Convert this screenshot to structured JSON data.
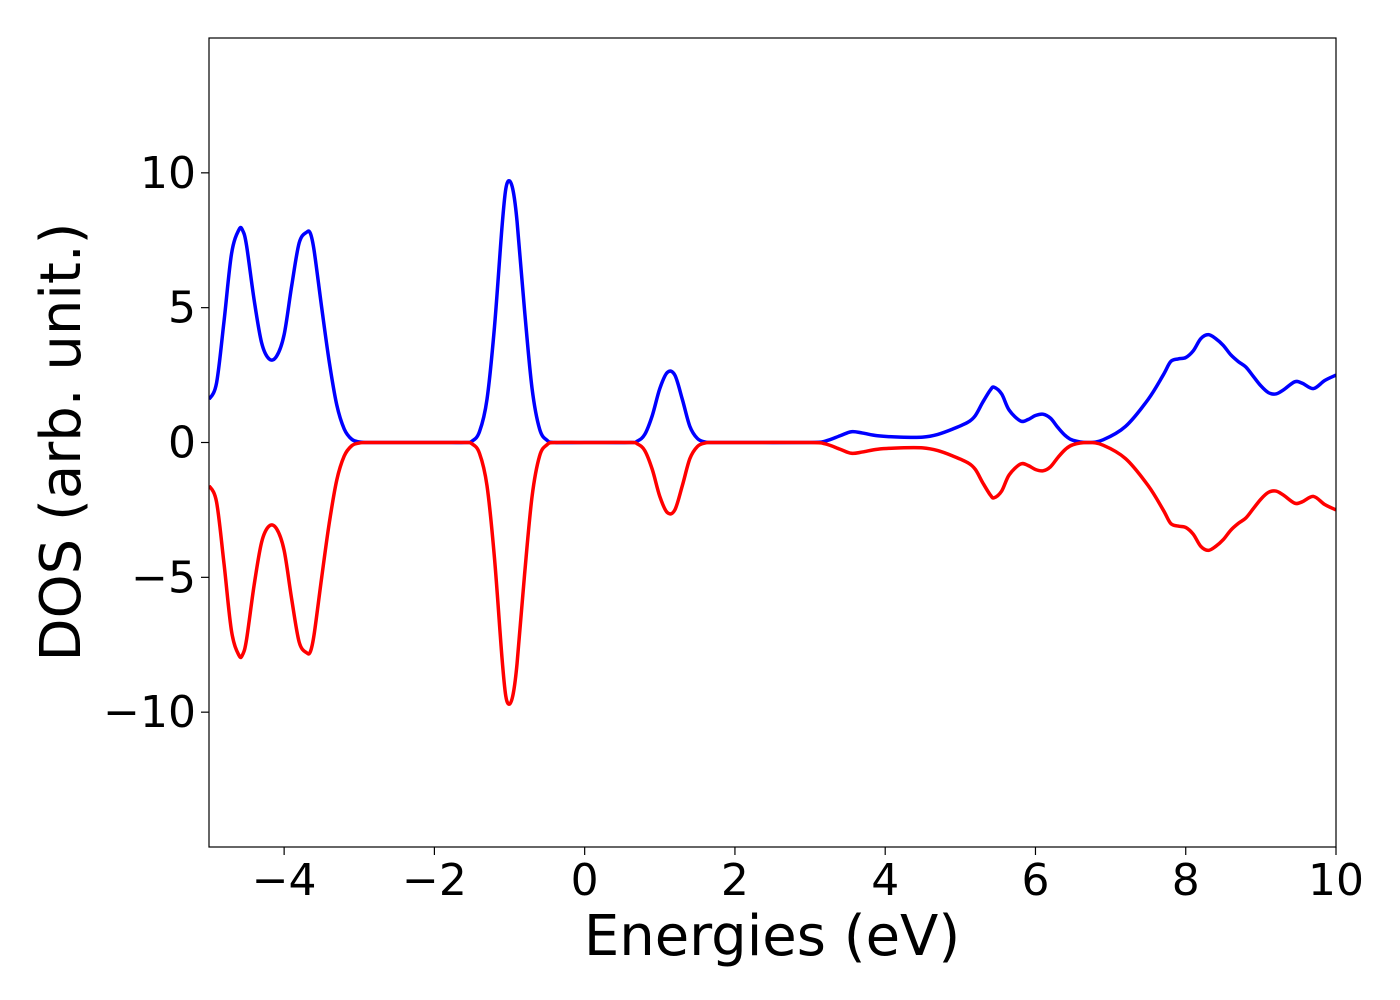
{
  "chart_data": {
    "type": "line",
    "title": "",
    "xlabel": "Energies (eV)",
    "ylabel": "DOS (arb. unit.)",
    "xlim": [
      -5,
      10
    ],
    "ylim": [
      -15,
      15
    ],
    "grid": false,
    "legend": "none",
    "x_ticks": [
      {
        "value": -4,
        "label": "−4"
      },
      {
        "value": -2,
        "label": "−2"
      },
      {
        "value": 0,
        "label": "0"
      },
      {
        "value": 2,
        "label": "2"
      },
      {
        "value": 4,
        "label": "4"
      },
      {
        "value": 6,
        "label": "6"
      },
      {
        "value": 8,
        "label": "8"
      },
      {
        "value": 10,
        "label": "10"
      }
    ],
    "y_ticks": [
      {
        "value": 10,
        "label": "10"
      },
      {
        "value": 5,
        "label": "5"
      },
      {
        "value": 0,
        "label": "0"
      },
      {
        "value": -5,
        "label": "−5"
      },
      {
        "value": -10,
        "label": "−10"
      }
    ],
    "series": [
      {
        "color": "#0000ff",
        "x": [
          -5.0,
          -4.9,
          -4.8,
          -4.7,
          -4.6,
          -4.55,
          -4.5,
          -4.4,
          -4.3,
          -4.2,
          -4.1,
          -4.0,
          -3.9,
          -3.8,
          -3.7,
          -3.65,
          -3.6,
          -3.5,
          -3.4,
          -3.3,
          -3.2,
          -3.1,
          -3.0,
          -2.9,
          -2.8,
          -2.0,
          -1.6,
          -1.5,
          -1.4,
          -1.3,
          -1.2,
          -1.1,
          -1.05,
          -1.0,
          -0.95,
          -0.9,
          -0.8,
          -0.7,
          -0.6,
          -0.5,
          -0.4,
          0.0,
          0.6,
          0.7,
          0.8,
          0.9,
          1.0,
          1.1,
          1.2,
          1.3,
          1.4,
          1.5,
          1.6,
          1.7,
          1.8,
          2.0,
          3.0,
          3.2,
          3.4,
          3.55,
          3.7,
          3.9,
          4.2,
          4.5,
          4.7,
          4.9,
          5.1,
          5.2,
          5.3,
          5.4,
          5.45,
          5.55,
          5.65,
          5.8,
          5.9,
          6.0,
          6.1,
          6.2,
          6.3,
          6.4,
          6.5,
          6.7,
          6.9,
          7.2,
          7.5,
          7.7,
          7.8,
          7.9,
          8.0,
          8.1,
          8.2,
          8.3,
          8.4,
          8.5,
          8.6,
          8.7,
          8.8,
          8.9,
          9.0,
          9.1,
          9.2,
          9.3,
          9.45,
          9.55,
          9.7,
          9.85,
          10.0
        ],
        "values": [
          1.6,
          2.2,
          4.5,
          7.0,
          7.9,
          7.85,
          7.3,
          5.3,
          3.7,
          3.1,
          3.2,
          4.0,
          5.8,
          7.4,
          7.8,
          7.75,
          7.1,
          5.0,
          3.0,
          1.4,
          0.5,
          0.12,
          0.02,
          0.0,
          0.0,
          0.0,
          0.0,
          0.05,
          0.4,
          1.6,
          4.3,
          8.0,
          9.4,
          9.7,
          9.3,
          8.2,
          4.9,
          2.0,
          0.5,
          0.08,
          0.0,
          0.0,
          0.0,
          0.05,
          0.3,
          1.0,
          2.0,
          2.6,
          2.5,
          1.6,
          0.6,
          0.15,
          0.02,
          0.0,
          0.0,
          0.0,
          0.0,
          0.05,
          0.25,
          0.4,
          0.35,
          0.25,
          0.2,
          0.2,
          0.3,
          0.5,
          0.75,
          1.0,
          1.5,
          1.95,
          2.05,
          1.8,
          1.2,
          0.8,
          0.85,
          1.0,
          1.05,
          0.9,
          0.55,
          0.25,
          0.08,
          0.0,
          0.1,
          0.6,
          1.6,
          2.5,
          3.0,
          3.1,
          3.15,
          3.4,
          3.85,
          4.0,
          3.85,
          3.6,
          3.25,
          3.0,
          2.8,
          2.45,
          2.1,
          1.85,
          1.8,
          1.95,
          2.25,
          2.2,
          2.0,
          2.3,
          2.5
        ]
      },
      {
        "color": "#ff0000",
        "x": [
          -5.0,
          -4.9,
          -4.8,
          -4.7,
          -4.6,
          -4.55,
          -4.5,
          -4.4,
          -4.3,
          -4.2,
          -4.1,
          -4.0,
          -3.9,
          -3.8,
          -3.7,
          -3.65,
          -3.6,
          -3.5,
          -3.4,
          -3.3,
          -3.2,
          -3.1,
          -3.0,
          -2.9,
          -2.8,
          -2.0,
          -1.6,
          -1.5,
          -1.4,
          -1.3,
          -1.2,
          -1.1,
          -1.05,
          -1.0,
          -0.95,
          -0.9,
          -0.8,
          -0.7,
          -0.6,
          -0.5,
          -0.4,
          0.0,
          0.6,
          0.7,
          0.8,
          0.9,
          1.0,
          1.1,
          1.2,
          1.3,
          1.4,
          1.5,
          1.6,
          1.7,
          1.8,
          2.0,
          3.0,
          3.2,
          3.4,
          3.55,
          3.7,
          3.9,
          4.2,
          4.5,
          4.7,
          4.9,
          5.1,
          5.2,
          5.3,
          5.4,
          5.45,
          5.55,
          5.65,
          5.8,
          5.9,
          6.0,
          6.1,
          6.2,
          6.3,
          6.4,
          6.5,
          6.7,
          6.9,
          7.2,
          7.5,
          7.7,
          7.8,
          7.9,
          8.0,
          8.1,
          8.2,
          8.3,
          8.4,
          8.5,
          8.6,
          8.7,
          8.8,
          8.9,
          9.0,
          9.1,
          9.2,
          9.3,
          9.45,
          9.55,
          9.7,
          9.85,
          10.0
        ],
        "values": [
          -1.6,
          -2.2,
          -4.5,
          -7.0,
          -7.9,
          -7.85,
          -7.3,
          -5.3,
          -3.7,
          -3.1,
          -3.2,
          -4.0,
          -5.8,
          -7.4,
          -7.8,
          -7.75,
          -7.1,
          -5.0,
          -3.0,
          -1.4,
          -0.5,
          -0.12,
          -0.02,
          0.0,
          0.0,
          0.0,
          0.0,
          -0.05,
          -0.4,
          -1.6,
          -4.3,
          -8.0,
          -9.4,
          -9.7,
          -9.3,
          -8.2,
          -4.9,
          -2.0,
          -0.5,
          -0.08,
          0.0,
          0.0,
          0.0,
          -0.05,
          -0.3,
          -1.0,
          -2.0,
          -2.6,
          -2.5,
          -1.6,
          -0.6,
          -0.15,
          -0.02,
          0.0,
          0.0,
          0.0,
          0.0,
          -0.05,
          -0.25,
          -0.4,
          -0.35,
          -0.25,
          -0.2,
          -0.2,
          -0.3,
          -0.5,
          -0.75,
          -1.0,
          -1.5,
          -1.95,
          -2.05,
          -1.8,
          -1.2,
          -0.8,
          -0.85,
          -1.0,
          -1.05,
          -0.9,
          -0.55,
          -0.25,
          -0.08,
          0.0,
          -0.1,
          -0.6,
          -1.6,
          -2.5,
          -3.0,
          -3.1,
          -3.15,
          -3.4,
          -3.85,
          -4.0,
          -3.85,
          -3.6,
          -3.25,
          -3.0,
          -2.8,
          -2.45,
          -2.1,
          -1.85,
          -1.8,
          -1.95,
          -2.25,
          -2.2,
          -2.0,
          -2.3,
          -2.5
        ]
      }
    ]
  }
}
